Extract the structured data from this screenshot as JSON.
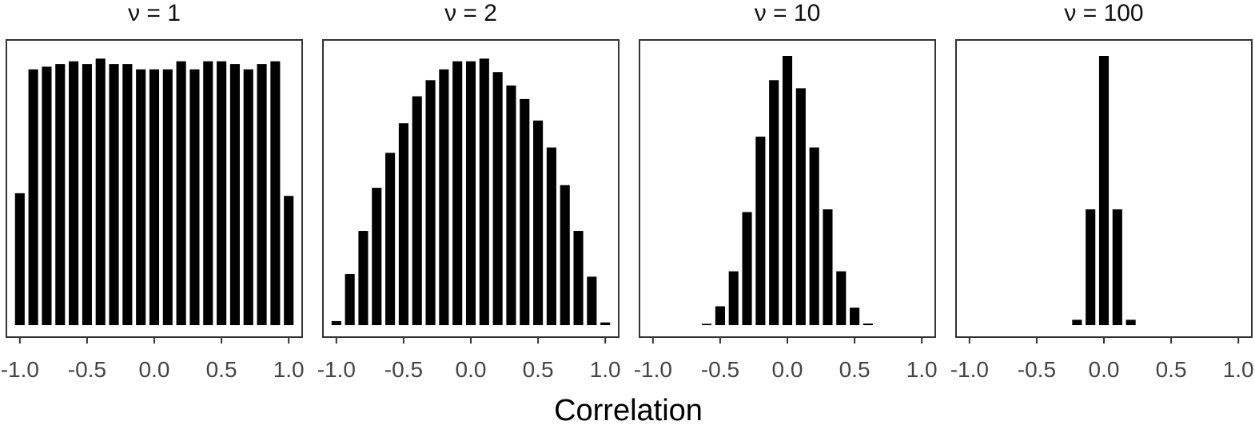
{
  "figure": {
    "xlabel": "Correlation"
  },
  "chart_data": [
    {
      "type": "bar",
      "title": "ν = 1",
      "xlim": [
        -1.1,
        1.1
      ],
      "xticks": [
        -1.0,
        -0.5,
        0.0,
        0.5,
        1.0
      ],
      "tick_labels": [
        "-1.0",
        "-0.5",
        "0.0",
        "0.5",
        "1.0"
      ],
      "bin_width": 0.1,
      "x": [
        -1.0,
        -0.9,
        -0.8,
        -0.7,
        -0.6,
        -0.5,
        -0.4,
        -0.3,
        -0.2,
        -0.1,
        0.0,
        0.1,
        0.2,
        0.3,
        0.4,
        0.5,
        0.6,
        0.7,
        0.8,
        0.9,
        1.0
      ],
      "values": [
        0.49,
        0.95,
        0.96,
        0.97,
        0.98,
        0.97,
        0.99,
        0.97,
        0.97,
        0.95,
        0.95,
        0.95,
        0.98,
        0.95,
        0.98,
        0.98,
        0.97,
        0.95,
        0.97,
        0.98,
        0.48
      ],
      "grid": false,
      "color": "#000000"
    },
    {
      "type": "bar",
      "title": "ν = 2",
      "xlim": [
        -1.1,
        1.1
      ],
      "xticks": [
        -1.0,
        -0.5,
        0.0,
        0.5,
        1.0
      ],
      "tick_labels": [
        "-1.0",
        "-0.5",
        "0.0",
        "0.5",
        "1.0"
      ],
      "bin_width": 0.1,
      "x": [
        -1.0,
        -0.9,
        -0.8,
        -0.7,
        -0.6,
        -0.5,
        -0.4,
        -0.3,
        -0.2,
        -0.1,
        0.0,
        0.1,
        0.2,
        0.3,
        0.4,
        0.5,
        0.6,
        0.7,
        0.8,
        0.9,
        1.0
      ],
      "values": [
        0.015,
        0.19,
        0.35,
        0.51,
        0.64,
        0.75,
        0.85,
        0.91,
        0.95,
        0.98,
        0.98,
        0.99,
        0.94,
        0.89,
        0.84,
        0.76,
        0.66,
        0.52,
        0.35,
        0.18,
        0.01
      ],
      "grid": false,
      "color": "#000000"
    },
    {
      "type": "bar",
      "title": "ν = 10",
      "xlim": [
        -1.1,
        1.1
      ],
      "xticks": [
        -1.0,
        -0.5,
        0.0,
        0.5,
        1.0
      ],
      "tick_labels": [
        "-1.0",
        "-0.5",
        "0.0",
        "0.5",
        "1.0"
      ],
      "bin_width": 0.1,
      "x": [
        -0.6,
        -0.5,
        -0.4,
        -0.3,
        -0.2,
        -0.1,
        0.0,
        0.1,
        0.2,
        0.3,
        0.4,
        0.5,
        0.6
      ],
      "values": [
        0.005,
        0.07,
        0.2,
        0.42,
        0.7,
        0.91,
        1.0,
        0.88,
        0.66,
        0.43,
        0.2,
        0.065,
        0.006
      ],
      "grid": false,
      "color": "#000000"
    },
    {
      "type": "bar",
      "title": "ν = 100",
      "xlim": [
        -1.1,
        1.1
      ],
      "xticks": [
        -1.0,
        -0.5,
        0.0,
        0.5,
        1.0
      ],
      "tick_labels": [
        "-1.0",
        "-0.5",
        "0.0",
        "0.5",
        "1.0"
      ],
      "bin_width": 0.1,
      "x": [
        -0.2,
        -0.1,
        0.0,
        0.1,
        0.2
      ],
      "values": [
        0.02,
        0.43,
        1.0,
        0.43,
        0.02
      ],
      "grid": false,
      "color": "#000000"
    }
  ]
}
